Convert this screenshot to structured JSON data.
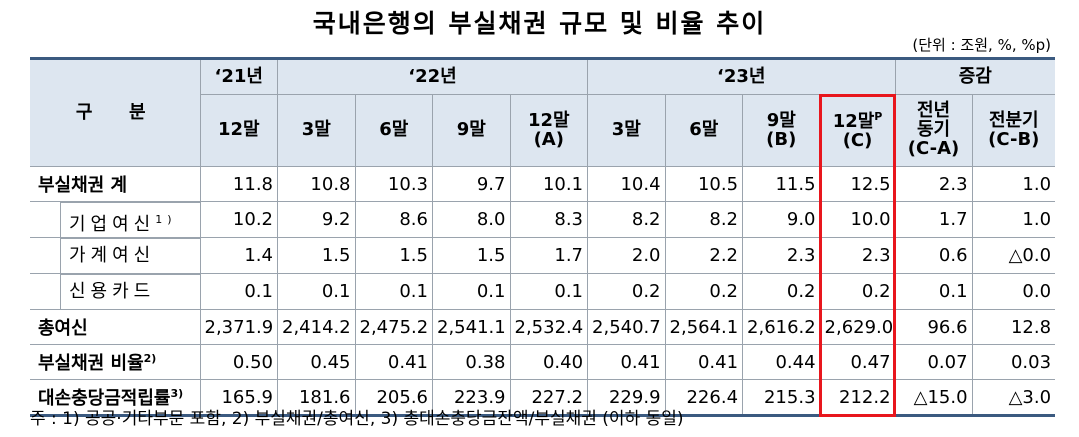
{
  "title": "국내은행의 부실채권 규모 및 비율 추이",
  "unit": "(단위 : 조원, %, %p)",
  "header": {
    "category": "구  분",
    "years": [
      {
        "label": "‘21년",
        "span": 1
      },
      {
        "label": "‘22년",
        "span": 4
      },
      {
        "label": "‘23년",
        "span": 4
      }
    ],
    "change": "증감",
    "periods": [
      {
        "label": "12말"
      },
      {
        "label": "3말"
      },
      {
        "label": "6말"
      },
      {
        "label": "9말"
      },
      {
        "label": "12말",
        "sub": "(A)"
      },
      {
        "label": "3말"
      },
      {
        "label": "6말"
      },
      {
        "label": "9말",
        "sub": "(B)"
      },
      {
        "label": "12말",
        "sup": "P",
        "sub": "(C)"
      }
    ],
    "change_cols": [
      [
        "전년",
        "동기",
        "(C-A)"
      ],
      [
        "전분기",
        "(C-B)"
      ]
    ]
  },
  "rows": [
    {
      "label": "부실채권 계",
      "values": [
        "11.8",
        "10.8",
        "10.3",
        "9.7",
        "10.1",
        "10.4",
        "10.5",
        "11.5",
        "12.5",
        "2.3",
        "1.0"
      ]
    },
    {
      "label": "기업여신",
      "note": "1)",
      "sub": true,
      "values": [
        "10.2",
        "9.2",
        "8.6",
        "8.0",
        "8.3",
        "8.2",
        "8.2",
        "9.0",
        "10.0",
        "1.7",
        "1.0"
      ]
    },
    {
      "label": "가계여신",
      "sub": true,
      "values": [
        "1.4",
        "1.5",
        "1.5",
        "1.5",
        "1.7",
        "2.0",
        "2.2",
        "2.3",
        "2.3",
        "0.6",
        "△0.0"
      ]
    },
    {
      "label": "신용카드",
      "sub": true,
      "values": [
        "0.1",
        "0.1",
        "0.1",
        "0.1",
        "0.1",
        "0.2",
        "0.2",
        "0.2",
        "0.2",
        "0.1",
        "0.0"
      ]
    },
    {
      "label": "총여신",
      "values": [
        "2,371.9",
        "2,414.2",
        "2,475.2",
        "2,541.1",
        "2,532.4",
        "2,540.7",
        "2,564.1",
        "2,616.2",
        "2,629.0",
        "96.6",
        "12.8"
      ]
    },
    {
      "label": "부실채권 비율",
      "note": "2)",
      "values": [
        "0.50",
        "0.45",
        "0.41",
        "0.38",
        "0.40",
        "0.41",
        "0.41",
        "0.44",
        "0.47",
        "0.07",
        "0.03"
      ]
    },
    {
      "label": "대손충당금적립률",
      "note": "3)",
      "values": [
        "165.9",
        "181.6",
        "205.6",
        "223.9",
        "227.2",
        "229.9",
        "226.4",
        "215.3",
        "212.2",
        "△15.0",
        "△3.0"
      ]
    }
  ],
  "footnote": "주 : 1) 공공·기타부문 포함,  2) 부실채권/총여신,  3) 총대손충당금잔액/부실채권 (이하 동일)"
}
